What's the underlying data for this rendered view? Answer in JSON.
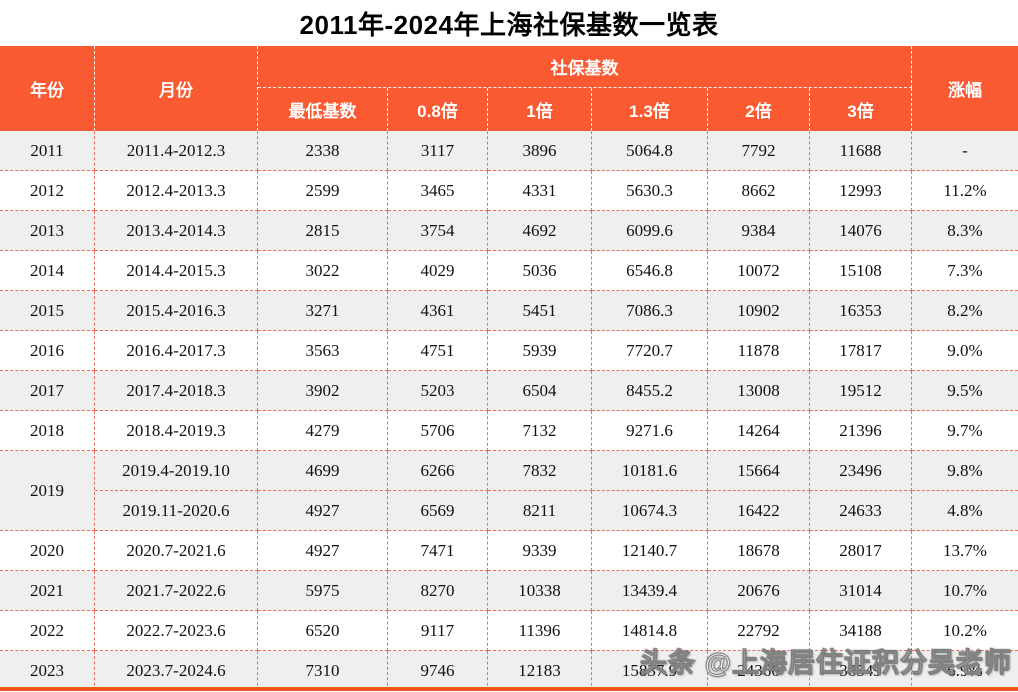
{
  "title": "2011年-2024年上海社保基数一览表",
  "watermark": "头条 @上海居住证积分吴老师",
  "colors": {
    "header_bg": "#fa5a32",
    "row_alt": "#efefef",
    "row_white": "#ffffff",
    "grid_dash": "#e8705a",
    "bottom_edge": "#f2541d"
  },
  "table": {
    "header": {
      "year": "年份",
      "month": "月份",
      "group": "社保基数",
      "increase": "涨幅",
      "sub": [
        "最低基数",
        "0.8倍",
        "1倍",
        "1.3倍",
        "2倍",
        "3倍"
      ]
    },
    "rows": [
      {
        "year": "2011",
        "rowspan": 1,
        "month": "2011.4-2012.3",
        "values": [
          "2338",
          "3117",
          "3896",
          "5064.8",
          "7792",
          "11688"
        ],
        "increase": "-",
        "shade": true
      },
      {
        "year": "2012",
        "rowspan": 1,
        "month": "2012.4-2013.3",
        "values": [
          "2599",
          "3465",
          "4331",
          "5630.3",
          "8662",
          "12993"
        ],
        "increase": "11.2%",
        "shade": false
      },
      {
        "year": "2013",
        "rowspan": 1,
        "month": "2013.4-2014.3",
        "values": [
          "2815",
          "3754",
          "4692",
          "6099.6",
          "9384",
          "14076"
        ],
        "increase": "8.3%",
        "shade": true
      },
      {
        "year": "2014",
        "rowspan": 1,
        "month": "2014.4-2015.3",
        "values": [
          "3022",
          "4029",
          "5036",
          "6546.8",
          "10072",
          "15108"
        ],
        "increase": "7.3%",
        "shade": false
      },
      {
        "year": "2015",
        "rowspan": 1,
        "month": "2015.4-2016.3",
        "values": [
          "3271",
          "4361",
          "5451",
          "7086.3",
          "10902",
          "16353"
        ],
        "increase": "8.2%",
        "shade": true
      },
      {
        "year": "2016",
        "rowspan": 1,
        "month": "2016.4-2017.3",
        "values": [
          "3563",
          "4751",
          "5939",
          "7720.7",
          "11878",
          "17817"
        ],
        "increase": "9.0%",
        "shade": false
      },
      {
        "year": "2017",
        "rowspan": 1,
        "month": "2017.4-2018.3",
        "values": [
          "3902",
          "5203",
          "6504",
          "8455.2",
          "13008",
          "19512"
        ],
        "increase": "9.5%",
        "shade": true
      },
      {
        "year": "2018",
        "rowspan": 1,
        "month": "2018.4-2019.3",
        "values": [
          "4279",
          "5706",
          "7132",
          "9271.6",
          "14264",
          "21396"
        ],
        "increase": "9.7%",
        "shade": false
      },
      {
        "year": "2019",
        "rowspan": 2,
        "month": "2019.4-2019.10",
        "values": [
          "4699",
          "6266",
          "7832",
          "10181.6",
          "15664",
          "23496"
        ],
        "increase": "9.8%",
        "shade": true
      },
      {
        "year": null,
        "rowspan": 0,
        "month": "2019.11-2020.6",
        "values": [
          "4927",
          "6569",
          "8211",
          "10674.3",
          "16422",
          "24633"
        ],
        "increase": "4.8%",
        "shade": true
      },
      {
        "year": "2020",
        "rowspan": 1,
        "month": "2020.7-2021.6",
        "values": [
          "4927",
          "7471",
          "9339",
          "12140.7",
          "18678",
          "28017"
        ],
        "increase": "13.7%",
        "shade": false
      },
      {
        "year": "2021",
        "rowspan": 1,
        "month": "2021.7-2022.6",
        "values": [
          "5975",
          "8270",
          "10338",
          "13439.4",
          "20676",
          "31014"
        ],
        "increase": "10.7%",
        "shade": true
      },
      {
        "year": "2022",
        "rowspan": 1,
        "month": "2022.7-2023.6",
        "values": [
          "6520",
          "9117",
          "11396",
          "14814.8",
          "22792",
          "34188"
        ],
        "increase": "10.2%",
        "shade": false
      },
      {
        "year": "2023",
        "rowspan": 1,
        "month": "2023.7-2024.6",
        "values": [
          "7310",
          "9746",
          "12183",
          "15837.9",
          "24366",
          "36549"
        ],
        "increase": "6.9%",
        "shade": true
      }
    ]
  }
}
